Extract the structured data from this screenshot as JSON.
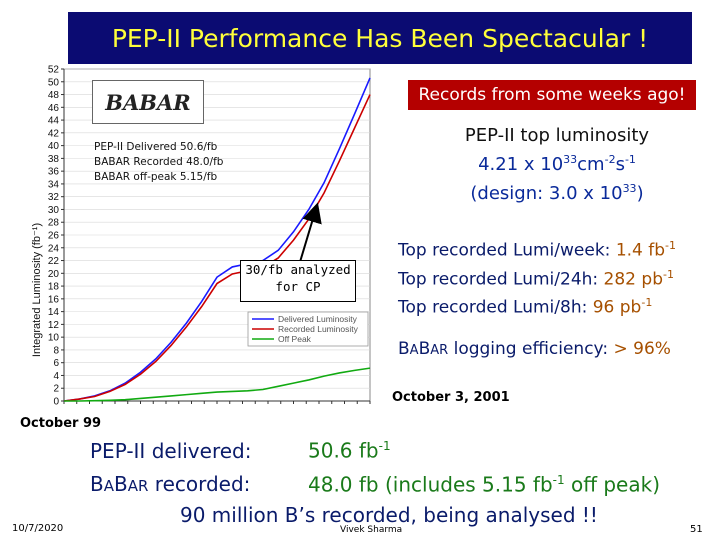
{
  "title": "PEP-II  Performance Has Been Spectacular !",
  "records_badge": "Records from some weeks ago!",
  "top_lumi": {
    "line1": "PEP-II top luminosity",
    "line2_value": "4.21 x 10",
    "line2_exp": "33",
    "line2_unit": "cm",
    "line2_unit_exp1": "-2",
    "line2_unit2": "s",
    "line2_unit_exp2": "-1",
    "line3_prefix": "(design: 3.0 x 10",
    "line3_exp": "33",
    "line3_suffix": ")"
  },
  "records": [
    {
      "label": "Top recorded Lumi/week: ",
      "value": "1.4 fb",
      "exp": "-1"
    },
    {
      "label": "Top recorded Lumi/24h: ",
      "value": "282 pb",
      "exp": "-1"
    },
    {
      "label": "Top recorded Lumi/8h: ",
      "value": "96 pb",
      "exp": "-1"
    }
  ],
  "logging": {
    "babar_b1": "B",
    "babar_a1": "A",
    "babar_b2": "B",
    "babar_ar": "AR",
    "text": " logging efficiency: ",
    "value": "> 96%"
  },
  "annotation": {
    "line1": "30/fb analyzed",
    "line2": "for CP"
  },
  "babar_logo": "BABAR",
  "inner_legend": [
    "PEP-II Delivered  50.6/fb",
    "BABAR Recorded  48.0/fb",
    "BABAR off-peak  5.15/fb"
  ],
  "date_end": "October 3, 2001",
  "date_start": "October 99",
  "summary": {
    "delivered_label": "PEP-II delivered:",
    "delivered_value": "50.6 fb",
    "delivered_exp": "-1",
    "recorded_label_b1": "B",
    "recorded_label_a1": "A",
    "recorded_label_b2": "B",
    "recorded_label_ar": "AR",
    "recorded_label_rest": " recorded:",
    "recorded_value": "48.0 fb",
    "recorded_note_prefix": " (includes 5.15 fb",
    "recorded_note_exp": "-1",
    "recorded_note_suffix": " off peak)",
    "line3": "90 million B’s recorded, being analysed !!"
  },
  "footer": {
    "date": "10/7/2020",
    "author": "Vivek Sharma",
    "page": "51"
  },
  "colors": {
    "delivered": "#1a1aff",
    "recorded": "#cc0000",
    "offpeak": "#11aa11",
    "title_bg": "#0b0b72",
    "title_fg": "#ffff3a"
  },
  "chart_data": {
    "type": "line",
    "ylabel": "Integrated Luminosity (fb⁻¹)",
    "ylim": [
      0,
      52
    ],
    "yticks": [
      0,
      2,
      4,
      6,
      8,
      10,
      12,
      14,
      16,
      18,
      20,
      22,
      24,
      26,
      28,
      30,
      32,
      34,
      36,
      38,
      40,
      42,
      44,
      46,
      48,
      50,
      52
    ],
    "legend": [
      "Delivered Luminosity",
      "Recorded Luminosity",
      "Off Peak"
    ],
    "x_range": [
      "October 99",
      "October 3, 2001"
    ],
    "x": [
      0,
      0.05,
      0.1,
      0.15,
      0.2,
      0.25,
      0.3,
      0.35,
      0.4,
      0.45,
      0.5,
      0.55,
      0.6,
      0.65,
      0.7,
      0.75,
      0.8,
      0.85,
      0.9,
      0.95,
      1.0
    ],
    "series": [
      {
        "name": "Delivered Luminosity",
        "values": [
          0,
          0.3,
          0.8,
          1.6,
          2.8,
          4.5,
          6.6,
          9.2,
          12.2,
          15.6,
          19.4,
          21.0,
          21.5,
          22.0,
          23.6,
          26.5,
          30.0,
          34.2,
          39.5,
          45.0,
          50.6
        ]
      },
      {
        "name": "Recorded Luminosity",
        "values": [
          0,
          0.3,
          0.7,
          1.5,
          2.6,
          4.2,
          6.2,
          8.7,
          11.6,
          14.8,
          18.4,
          19.9,
          20.4,
          20.9,
          22.4,
          25.2,
          28.5,
          32.6,
          37.6,
          42.8,
          48.0
        ]
      },
      {
        "name": "Off Peak",
        "values": [
          0,
          0,
          0.05,
          0.1,
          0.2,
          0.4,
          0.6,
          0.8,
          1.0,
          1.2,
          1.4,
          1.5,
          1.6,
          1.8,
          2.3,
          2.8,
          3.3,
          3.9,
          4.4,
          4.8,
          5.15
        ]
      }
    ]
  }
}
